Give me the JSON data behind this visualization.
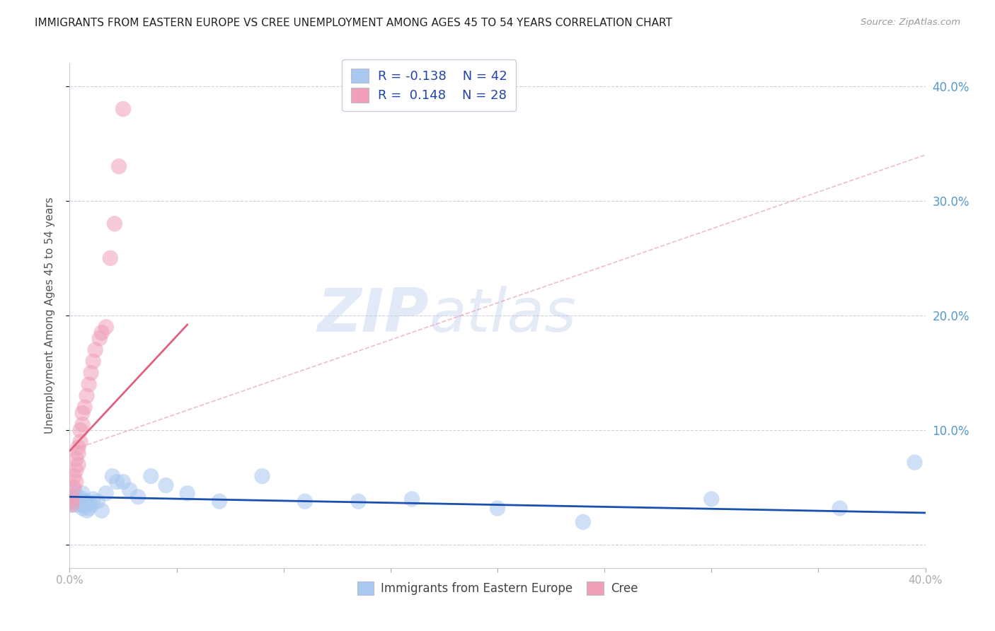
{
  "title": "IMMIGRANTS FROM EASTERN EUROPE VS CREE UNEMPLOYMENT AMONG AGES 45 TO 54 YEARS CORRELATION CHART",
  "source": "Source: ZipAtlas.com",
  "ylabel": "Unemployment Among Ages 45 to 54 years",
  "xlim": [
    0.0,
    0.4
  ],
  "ylim": [
    -0.02,
    0.42
  ],
  "ytick_right_labels": [
    "",
    "10.0%",
    "20.0%",
    "30.0%",
    "40.0%"
  ],
  "ytick_right_values": [
    0.0,
    0.1,
    0.2,
    0.3,
    0.4
  ],
  "blue_color": "#A8C8F0",
  "pink_color": "#F0A0B8",
  "blue_line_color": "#1A50B0",
  "pink_line_color": "#E06080",
  "dashed_line_color": "#E0A0B0",
  "watermark_zip": "ZIP",
  "watermark_atlas": "atlas",
  "background_color": "#FFFFFF",
  "grid_color": "#CCCCDD",
  "blue_scatter_x": [
    0.001,
    0.001,
    0.002,
    0.002,
    0.002,
    0.003,
    0.003,
    0.004,
    0.004,
    0.005,
    0.005,
    0.006,
    0.006,
    0.006,
    0.007,
    0.007,
    0.008,
    0.008,
    0.009,
    0.01,
    0.011,
    0.013,
    0.015,
    0.017,
    0.02,
    0.022,
    0.025,
    0.028,
    0.032,
    0.038,
    0.045,
    0.055,
    0.07,
    0.09,
    0.11,
    0.135,
    0.16,
    0.2,
    0.24,
    0.3,
    0.36,
    0.395
  ],
  "blue_scatter_y": [
    0.04,
    0.035,
    0.038,
    0.042,
    0.048,
    0.035,
    0.04,
    0.038,
    0.042,
    0.035,
    0.038,
    0.032,
    0.04,
    0.045,
    0.035,
    0.038,
    0.03,
    0.038,
    0.032,
    0.035,
    0.04,
    0.038,
    0.03,
    0.045,
    0.06,
    0.055,
    0.055,
    0.048,
    0.042,
    0.06,
    0.052,
    0.045,
    0.038,
    0.06,
    0.038,
    0.038,
    0.04,
    0.032,
    0.02,
    0.04,
    0.032,
    0.072
  ],
  "pink_scatter_x": [
    0.001,
    0.001,
    0.001,
    0.002,
    0.002,
    0.003,
    0.003,
    0.003,
    0.004,
    0.004,
    0.004,
    0.005,
    0.005,
    0.006,
    0.006,
    0.007,
    0.008,
    0.009,
    0.01,
    0.011,
    0.012,
    0.014,
    0.015,
    0.017,
    0.019,
    0.021,
    0.023,
    0.025
  ],
  "pink_scatter_y": [
    0.035,
    0.038,
    0.042,
    0.05,
    0.06,
    0.055,
    0.065,
    0.075,
    0.07,
    0.08,
    0.085,
    0.09,
    0.1,
    0.105,
    0.115,
    0.12,
    0.13,
    0.14,
    0.15,
    0.16,
    0.17,
    0.18,
    0.185,
    0.19,
    0.25,
    0.28,
    0.33,
    0.38
  ],
  "blue_trend_x": [
    0.0,
    0.4
  ],
  "blue_trend_y": [
    0.042,
    0.028
  ],
  "pink_solid_trend_x": [
    0.0,
    0.055
  ],
  "pink_solid_trend_y": [
    0.082,
    0.192
  ],
  "pink_dashed_trend_x": [
    0.0,
    0.4
  ],
  "pink_dashed_trend_y": [
    0.082,
    0.34
  ]
}
